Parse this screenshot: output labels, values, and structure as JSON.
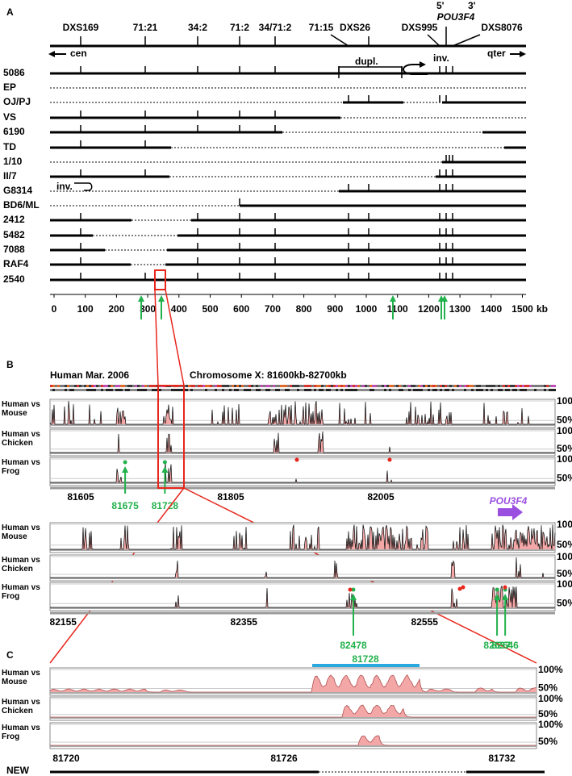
{
  "panel_a": {
    "letter": "A",
    "markers": [
      "DXS169",
      "71:21",
      "34:2",
      "71:2",
      "34/71:2",
      "71:15",
      "DXS26",
      "DXS995",
      "DXS8076"
    ],
    "gene": "POU3F4",
    "five_prime": "5'",
    "three_prime": "3'",
    "cen": "cen",
    "qter": "qter",
    "dupl": "dupl.",
    "inv": "inv.",
    "rows": [
      "5086",
      "EP",
      "OJ/PJ",
      "VS",
      "6190",
      "TD",
      "1/10",
      "II/7",
      "G8314",
      "BD6/ML",
      "2412",
      "5482",
      "7088",
      "RAF4",
      "2540"
    ],
    "axis_ticks": [
      0,
      100,
      200,
      300,
      400,
      500,
      600,
      700,
      800,
      900,
      1000,
      1100,
      1200,
      1300,
      1400,
      1500
    ],
    "axis_unit": "kb"
  },
  "panel_b": {
    "letter": "B",
    "assembly": "Human Mar. 2006",
    "region": "Chromosome X: 81600kb-82700kb",
    "tracks": [
      "Human vs Mouse",
      "Human vs Chicken",
      "Human vs Frog"
    ],
    "scale": [
      "100%",
      "50%"
    ],
    "gene": "POU3F4",
    "block1": {
      "ticks": [
        81605,
        81805,
        82005
      ],
      "elements": [
        81675,
        81728
      ]
    },
    "block2": {
      "ticks": [
        82155,
        82355,
        82555
      ],
      "elements": [
        82478,
        82637,
        82646
      ]
    }
  },
  "panel_c": {
    "letter": "C",
    "element": 81728,
    "ticks": [
      81720,
      81726,
      81732
    ],
    "new": "NEW"
  }
}
